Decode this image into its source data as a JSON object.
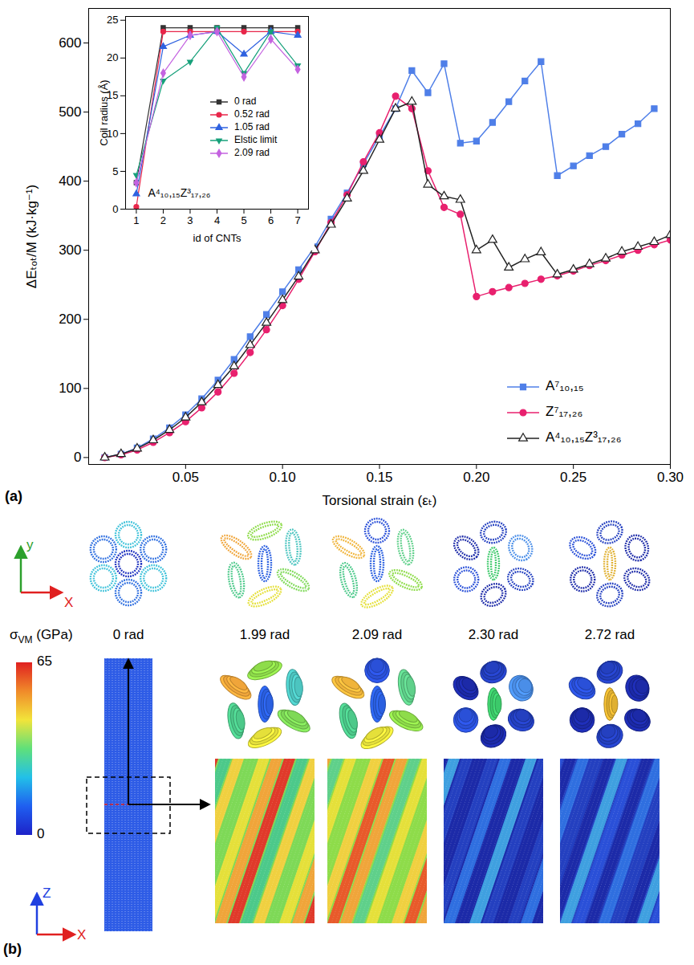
{
  "chart_data": [
    {
      "type": "line",
      "panel": "(a)",
      "xlabel": "Torsional strain (εₜ)",
      "ylabel": "ΔEₜₒₜ/M (kJ·kg⁻¹)",
      "x": [
        0.0083,
        0.0167,
        0.025,
        0.0333,
        0.0417,
        0.05,
        0.0583,
        0.0667,
        0.075,
        0.0833,
        0.0917,
        0.1,
        0.1083,
        0.1167,
        0.125,
        0.1333,
        0.1417,
        0.15,
        0.1583,
        0.1667,
        0.175,
        0.1833,
        0.1917,
        0.2,
        0.2083,
        0.2167,
        0.225,
        0.2333,
        0.2417,
        0.25,
        0.2583,
        0.2667,
        0.275,
        0.2833,
        0.2917,
        0.3
      ],
      "series": [
        {
          "name": "A⁷₁₀,₁₅",
          "color": "#4f7fe8",
          "marker": "square",
          "values": [
            0,
            5,
            14,
            27,
            43,
            62,
            85,
            112,
            142,
            175,
            207,
            240,
            272,
            305,
            345,
            383,
            425,
            465,
            505,
            560,
            528,
            570,
            455,
            458,
            485,
            515,
            545,
            573,
            408,
            422,
            437,
            450,
            468,
            483,
            505,
            null
          ]
        },
        {
          "name": "Z⁷₁₇,₂₆",
          "color": "#e8206e",
          "marker": "circle",
          "values": [
            0,
            4,
            11,
            22,
            36,
            52,
            72,
            95,
            122,
            152,
            185,
            220,
            258,
            298,
            340,
            380,
            428,
            470,
            523,
            505,
            415,
            362,
            352,
            233,
            240,
            246,
            252,
            258,
            263,
            270,
            278,
            285,
            293,
            300,
            308,
            315
          ]
        },
        {
          "name": "A⁴₁₀,₁₅Z³₁₇,₂₆",
          "color": "#222222",
          "marker": "open-triangle",
          "values": [
            0,
            5,
            13,
            25,
            40,
            58,
            80,
            105,
            132,
            163,
            195,
            228,
            262,
            300,
            337,
            375,
            415,
            460,
            505,
            515,
            395,
            378,
            373,
            300,
            315,
            275,
            287,
            297,
            265,
            272,
            280,
            288,
            298,
            305,
            312,
            322
          ]
        }
      ],
      "xlim": [
        0,
        0.3
      ],
      "xticks": [
        {
          "value": 0.05,
          "label": "0.05"
        },
        {
          "value": 0.1,
          "label": "0.10"
        },
        {
          "value": 0.15,
          "label": "0.15"
        },
        {
          "value": 0.2,
          "label": "0.20"
        },
        {
          "value": 0.25,
          "label": "0.25"
        },
        {
          "value": 0.3,
          "label": "0.30"
        }
      ],
      "ylim": [
        -10,
        650
      ],
      "yticks": [
        0,
        100,
        200,
        300,
        400,
        500,
        600
      ],
      "grid": false,
      "legend": "lower right"
    },
    {
      "type": "line",
      "xlabel": "id of CNTs",
      "ylabel": "Coil radius (Å)",
      "annotation": "A⁴₁₀,₁₅Z³₁₇,₂₆",
      "x": [
        1,
        2,
        3,
        4,
        5,
        6,
        7
      ],
      "series": [
        {
          "name": "0 rad",
          "color": "#333333",
          "marker": "square",
          "values": [
            3.5,
            24,
            24,
            24,
            24,
            24,
            24
          ]
        },
        {
          "name": "0.52 rad",
          "color": "#e8264a",
          "marker": "circle",
          "values": [
            0.3,
            23.5,
            23.5,
            23.5,
            23.5,
            23.5,
            23.5
          ]
        },
        {
          "name": "1.05 rad",
          "color": "#2f62e0",
          "marker": "triangle",
          "values": [
            2,
            21.5,
            23,
            23.5,
            20.5,
            23.5,
            23
          ]
        },
        {
          "name": "Elstic limit",
          "color": "#16a07a",
          "marker": "triangle-down",
          "values": [
            4.5,
            17,
            19.5,
            24,
            18,
            23.5,
            19
          ]
        },
        {
          "name": "2.09 rad",
          "color": "#c463e0",
          "marker": "diamond",
          "values": [
            3.5,
            18,
            23,
            23.5,
            17.5,
            22.5,
            18.5
          ]
        }
      ],
      "xlim": [
        0.6,
        7.4
      ],
      "xticks": [
        1,
        2,
        3,
        4,
        5,
        6,
        7
      ],
      "ylim": [
        0,
        25.5
      ],
      "yticks": [
        0,
        5,
        10,
        15,
        20,
        25
      ],
      "grid": false,
      "legend": "right"
    }
  ],
  "diagram": {
    "panel": "(b)",
    "stress": {
      "symbol": "σ",
      "subscript": "VM",
      "unit": "(GPa)",
      "min": 0,
      "max": 65,
      "ticks": [
        0,
        65
      ]
    },
    "states": [
      "0 rad",
      "1.99 rad",
      "2.09 rad",
      "2.30 rad",
      "2.72 rad"
    ],
    "axes_top": [
      "y",
      "X"
    ],
    "axes_bottom": [
      "Z",
      "X"
    ]
  }
}
